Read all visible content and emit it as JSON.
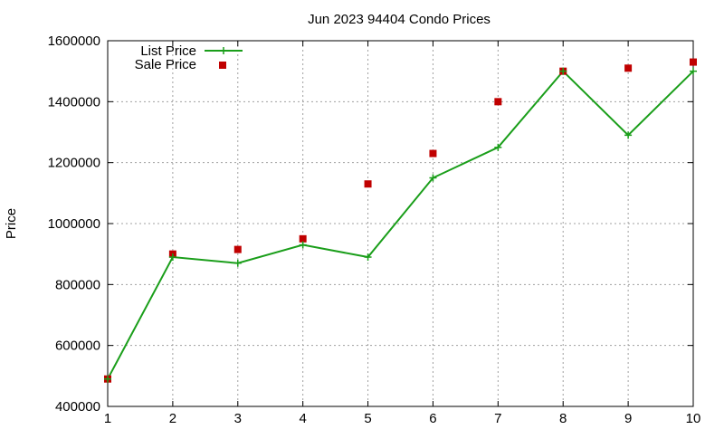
{
  "chart_data": {
    "type": "line",
    "title": "Jun 2023 94404 Condo Prices",
    "xlabel": "",
    "ylabel": "Price",
    "xlim": [
      1,
      10
    ],
    "ylim": [
      400000,
      1600000
    ],
    "x": [
      1,
      2,
      3,
      4,
      5,
      6,
      7,
      8,
      9,
      10
    ],
    "xticks": [
      "1",
      "2",
      "3",
      "4",
      "5",
      "6",
      "7",
      "8",
      "9",
      "10"
    ],
    "yticks": [
      "400000",
      "600000",
      "800000",
      "1000000",
      "1200000",
      "1400000",
      "1600000"
    ],
    "ytick_values": [
      400000,
      600000,
      800000,
      1000000,
      1200000,
      1400000,
      1600000
    ],
    "grid": true,
    "legend_position": "top-left",
    "series": [
      {
        "name": "List Price",
        "style": "line-with-plus-markers",
        "color": "#1a9e1a",
        "values": [
          490000,
          890000,
          870000,
          930000,
          890000,
          1150000,
          1250000,
          1500000,
          1290000,
          1500000
        ]
      },
      {
        "name": "Sale Price",
        "style": "square-markers",
        "color": "#c00000",
        "values": [
          490000,
          900000,
          915000,
          950000,
          1130000,
          1230000,
          1400000,
          1500000,
          1510000,
          1530000
        ]
      }
    ]
  }
}
